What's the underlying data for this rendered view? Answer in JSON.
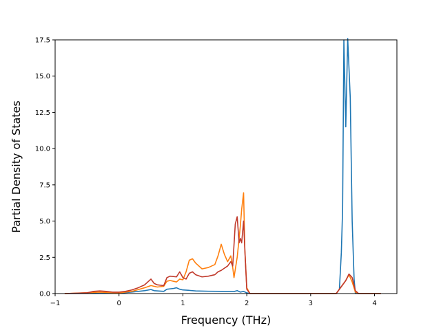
{
  "chart_data": {
    "type": "line",
    "title": "",
    "xlabel": "Frequency (THz)",
    "ylabel": "Partial Density of States",
    "xlim": [
      -1.0,
      4.35
    ],
    "ylim": [
      0,
      17.5
    ],
    "xticks": [
      -1,
      0,
      1,
      2,
      3,
      4
    ],
    "yticks": [
      0.0,
      2.5,
      5.0,
      7.5,
      10.0,
      12.5,
      15.0,
      17.5
    ],
    "grid": false,
    "series": [
      {
        "color": "#1f77b4",
        "points": [
          [
            -0.85,
            0
          ],
          [
            -0.4,
            0.01
          ],
          [
            -0.2,
            0.02
          ],
          [
            0,
            0.03
          ],
          [
            0.2,
            0.1
          ],
          [
            0.4,
            0.2
          ],
          [
            0.5,
            0.28
          ],
          [
            0.55,
            0.2
          ],
          [
            0.7,
            0.15
          ],
          [
            0.75,
            0.3
          ],
          [
            0.85,
            0.35
          ],
          [
            0.9,
            0.4
          ],
          [
            0.95,
            0.3
          ],
          [
            1.0,
            0.25
          ],
          [
            1.1,
            0.22
          ],
          [
            1.2,
            0.18
          ],
          [
            1.4,
            0.16
          ],
          [
            1.6,
            0.15
          ],
          [
            1.8,
            0.14
          ],
          [
            1.85,
            0.2
          ],
          [
            1.9,
            0.1
          ],
          [
            1.95,
            0.15
          ],
          [
            2.0,
            0.05
          ],
          [
            2.05,
            0
          ],
          [
            3.4,
            0
          ],
          [
            3.45,
            0.3
          ],
          [
            3.48,
            2.8
          ],
          [
            3.5,
            5.8
          ],
          [
            3.52,
            17.5
          ],
          [
            3.55,
            11.5
          ],
          [
            3.58,
            17.6
          ],
          [
            3.62,
            13.5
          ],
          [
            3.65,
            5
          ],
          [
            3.68,
            1
          ],
          [
            3.7,
            0
          ],
          [
            4.1,
            0
          ]
        ]
      },
      {
        "color": "#ff7f0e",
        "points": [
          [
            -0.85,
            0
          ],
          [
            -0.4,
            0.08
          ],
          [
            -0.3,
            0.1
          ],
          [
            -0.2,
            0.08
          ],
          [
            0,
            0.05
          ],
          [
            0.2,
            0.15
          ],
          [
            0.4,
            0.4
          ],
          [
            0.5,
            0.55
          ],
          [
            0.6,
            0.45
          ],
          [
            0.7,
            0.5
          ],
          [
            0.75,
            0.85
          ],
          [
            0.8,
            0.9
          ],
          [
            0.9,
            0.8
          ],
          [
            0.95,
            1.0
          ],
          [
            1.0,
            0.95
          ],
          [
            1.05,
            1.5
          ],
          [
            1.1,
            2.3
          ],
          [
            1.15,
            2.4
          ],
          [
            1.2,
            2.1
          ],
          [
            1.3,
            1.7
          ],
          [
            1.4,
            1.8
          ],
          [
            1.5,
            2.0
          ],
          [
            1.55,
            2.6
          ],
          [
            1.6,
            3.4
          ],
          [
            1.65,
            2.7
          ],
          [
            1.7,
            2.2
          ],
          [
            1.75,
            2.6
          ],
          [
            1.78,
            1.8
          ],
          [
            1.8,
            1.1
          ],
          [
            1.85,
            2.5
          ],
          [
            1.88,
            3.8
          ],
          [
            1.9,
            4.7
          ],
          [
            1.92,
            5.8
          ],
          [
            1.95,
            6.95
          ],
          [
            1.97,
            3.0
          ],
          [
            2.0,
            0.4
          ],
          [
            2.05,
            0
          ],
          [
            3.4,
            0
          ],
          [
            3.5,
            0.6
          ],
          [
            3.55,
            0.9
          ],
          [
            3.6,
            1.3
          ],
          [
            3.65,
            0.8
          ],
          [
            3.7,
            0.1
          ],
          [
            3.75,
            0
          ],
          [
            4.1,
            0
          ]
        ]
      },
      {
        "color": "#c0392b",
        "points": [
          [
            -0.85,
            0
          ],
          [
            -0.5,
            0.05
          ],
          [
            -0.4,
            0.15
          ],
          [
            -0.3,
            0.18
          ],
          [
            -0.2,
            0.15
          ],
          [
            -0.1,
            0.1
          ],
          [
            0,
            0.1
          ],
          [
            0.1,
            0.15
          ],
          [
            0.2,
            0.25
          ],
          [
            0.3,
            0.4
          ],
          [
            0.4,
            0.6
          ],
          [
            0.5,
            1.0
          ],
          [
            0.55,
            0.7
          ],
          [
            0.6,
            0.6
          ],
          [
            0.7,
            0.55
          ],
          [
            0.75,
            1.1
          ],
          [
            0.8,
            1.2
          ],
          [
            0.9,
            1.15
          ],
          [
            0.95,
            1.5
          ],
          [
            1.0,
            1.1
          ],
          [
            1.05,
            1.0
          ],
          [
            1.1,
            1.4
          ],
          [
            1.15,
            1.5
          ],
          [
            1.2,
            1.3
          ],
          [
            1.3,
            1.15
          ],
          [
            1.4,
            1.2
          ],
          [
            1.5,
            1.3
          ],
          [
            1.55,
            1.5
          ],
          [
            1.6,
            1.6
          ],
          [
            1.7,
            1.9
          ],
          [
            1.75,
            2.2
          ],
          [
            1.78,
            1.9
          ],
          [
            1.82,
            4.8
          ],
          [
            1.85,
            5.3
          ],
          [
            1.88,
            3.5
          ],
          [
            1.9,
            3.8
          ],
          [
            1.92,
            3.5
          ],
          [
            1.95,
            5.0
          ],
          [
            1.97,
            3.0
          ],
          [
            2.0,
            0.3
          ],
          [
            2.05,
            0
          ],
          [
            3.4,
            0
          ],
          [
            3.5,
            0.6
          ],
          [
            3.55,
            0.9
          ],
          [
            3.6,
            1.35
          ],
          [
            3.65,
            1.1
          ],
          [
            3.7,
            0.2
          ],
          [
            3.75,
            0
          ],
          [
            4.1,
            0
          ]
        ]
      }
    ]
  }
}
